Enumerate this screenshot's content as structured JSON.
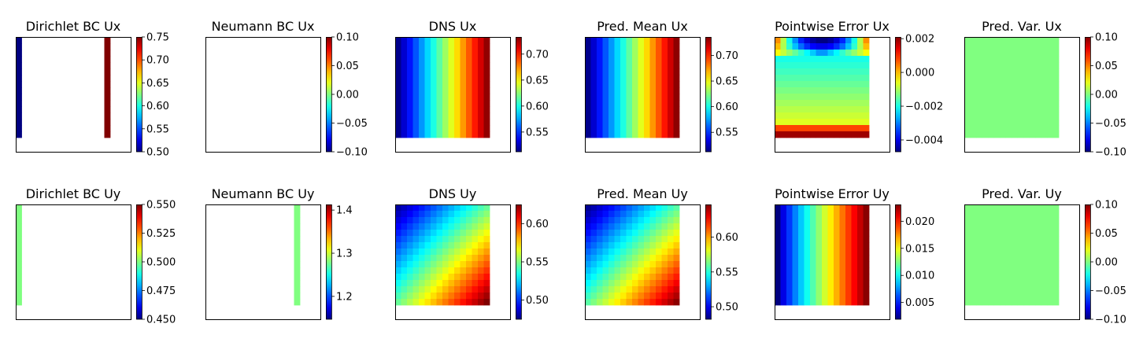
{
  "colormap": "jet",
  "chart_data": [
    {
      "type": "heatmap",
      "title": "Dirichlet BC Ux",
      "clim": [
        0.5,
        0.75
      ],
      "ticks": [
        "0.50",
        "0.55",
        "0.60",
        "0.65",
        "0.70",
        "0.75"
      ],
      "tick_values": [
        0.5,
        0.55,
        0.6,
        0.65,
        0.7,
        0.75
      ],
      "field": "dirichlet_ux"
    },
    {
      "type": "heatmap",
      "title": "Neumann BC Ux",
      "clim": [
        -0.1,
        0.1
      ],
      "ticks": [
        "−0.10",
        "−0.05",
        "0.00",
        "0.05",
        "0.10"
      ],
      "tick_values": [
        -0.1,
        -0.05,
        0,
        0.05,
        0.1
      ],
      "field": "neumann_ux"
    },
    {
      "type": "heatmap",
      "title": "DNS Ux",
      "clim": [
        0.512,
        0.733
      ],
      "ticks": [
        "0.55",
        "0.60",
        "0.65",
        "0.70"
      ],
      "tick_values": [
        0.55,
        0.6,
        0.65,
        0.7
      ],
      "field": "dns_ux"
    },
    {
      "type": "heatmap",
      "title": "Pred. Mean Ux",
      "clim": [
        0.512,
        0.736
      ],
      "ticks": [
        "0.55",
        "0.60",
        "0.65",
        "0.70"
      ],
      "tick_values": [
        0.55,
        0.6,
        0.65,
        0.7
      ],
      "field": "mean_ux"
    },
    {
      "type": "heatmap",
      "title": "Pointwise Error Ux",
      "clim": [
        -0.0047,
        0.0021
      ],
      "ticks": [
        "−0.004",
        "−0.002",
        "0.000",
        "0.002"
      ],
      "tick_values": [
        -0.004,
        -0.002,
        0,
        0.002
      ],
      "field": "error_ux"
    },
    {
      "type": "heatmap",
      "title": "Pred. Var. Ux",
      "clim": [
        -0.1,
        0.1
      ],
      "ticks": [
        "−0.10",
        "−0.05",
        "0.00",
        "0.05",
        "0.10"
      ],
      "tick_values": [
        -0.1,
        -0.05,
        0,
        0.05,
        0.1
      ],
      "field": "var_ux"
    },
    {
      "type": "heatmap",
      "title": "Dirichlet BC Uy",
      "clim": [
        0.45,
        0.55
      ],
      "ticks": [
        "0.450",
        "0.475",
        "0.500",
        "0.525",
        "0.550"
      ],
      "tick_values": [
        0.45,
        0.475,
        0.5,
        0.525,
        0.55
      ],
      "field": "dirichlet_uy"
    },
    {
      "type": "heatmap",
      "title": "Neumann BC Uy",
      "clim": [
        1.147,
        1.413
      ],
      "ticks": [
        "1.2",
        "1.3",
        "1.4"
      ],
      "tick_values": [
        1.2,
        1.3,
        1.4
      ],
      "field": "neumann_uy"
    },
    {
      "type": "heatmap",
      "title": "DNS Uy",
      "clim": [
        0.475,
        0.625
      ],
      "ticks": [
        "0.50",
        "0.55",
        "0.60"
      ],
      "tick_values": [
        0.5,
        0.55,
        0.6
      ],
      "field": "dns_uy"
    },
    {
      "type": "heatmap",
      "title": "Pred. Mean Uy",
      "clim": [
        0.482,
        0.647
      ],
      "ticks": [
        "0.50",
        "0.55",
        "0.60"
      ],
      "tick_values": [
        0.5,
        0.55,
        0.6
      ],
      "field": "mean_uy"
    },
    {
      "type": "heatmap",
      "title": "Pointwise Error Uy",
      "clim": [
        0.0019,
        0.0231
      ],
      "ticks": [
        "0.005",
        "0.010",
        "0.015",
        "0.020"
      ],
      "tick_values": [
        0.005,
        0.01,
        0.015,
        0.02
      ],
      "field": "error_uy"
    },
    {
      "type": "heatmap",
      "title": "Pred. Var. Uy",
      "clim": [
        -0.1,
        0.1
      ],
      "ticks": [
        "−0.10",
        "−0.05",
        "0.00",
        "0.05",
        "0.10"
      ],
      "tick_values": [
        -0.1,
        -0.05,
        0,
        0.05,
        0.1
      ],
      "field": "var_uy"
    }
  ]
}
